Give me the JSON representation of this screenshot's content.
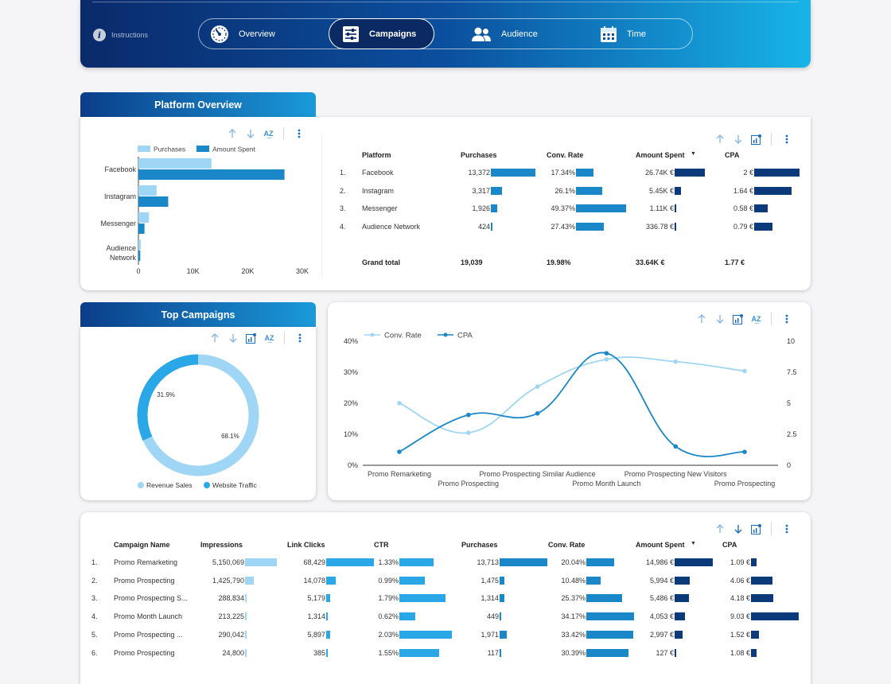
{
  "header": {
    "instructions_label": "Instructions",
    "nav": [
      {
        "label": "Overview",
        "icon": "gauge-icon",
        "active": false
      },
      {
        "label": "Campaigns",
        "icon": "sliders-icon",
        "active": true
      },
      {
        "label": "Audience",
        "icon": "users-icon",
        "active": false
      },
      {
        "label": "Time",
        "icon": "calendar-icon",
        "active": false
      }
    ]
  },
  "colors": {
    "light": "#9fd6f5",
    "mid": "#1a87c9",
    "dark": "#0b3a7a",
    "bright": "#2aa7e6"
  },
  "platform_overview": {
    "title": "Platform Overview",
    "chart": {
      "type": "bar",
      "orientation": "horizontal",
      "categories": [
        "Facebook",
        "Instagram",
        "Messenger",
        "Audience Network"
      ],
      "series": [
        {
          "name": "Purchases",
          "values": [
            13372,
            3317,
            1926,
            424
          ],
          "color": "#9fd6f5"
        },
        {
          "name": "Amount Spent",
          "values": [
            26740,
            5450,
            1110,
            336.78
          ],
          "color": "#1a87c9"
        }
      ],
      "xlim": [
        0,
        30000
      ],
      "xticks": [
        "0",
        "10K",
        "20K",
        "30K"
      ],
      "legend": "top"
    },
    "table": {
      "headers": [
        "Platform",
        "Purchases",
        "Conv. Rate",
        "Amount Spent",
        "CPA"
      ],
      "sort_indicator": "▼",
      "rows": [
        {
          "idx": "1.",
          "platform": "Facebook",
          "purchases": "13,372",
          "purchases_v": 13372,
          "conv": "17.34%",
          "conv_v": 17.34,
          "spent": "26.74K €",
          "spent_v": 26.74,
          "cpa": "2 €",
          "cpa_v": 2
        },
        {
          "idx": "2.",
          "platform": "Instagram",
          "purchases": "3,317",
          "purchases_v": 3317,
          "conv": "26.1%",
          "conv_v": 26.1,
          "spent": "5.45K €",
          "spent_v": 5.45,
          "cpa": "1.64 €",
          "cpa_v": 1.64
        },
        {
          "idx": "3.",
          "platform": "Messenger",
          "purchases": "1,926",
          "purchases_v": 1926,
          "conv": "49.37%",
          "conv_v": 49.37,
          "spent": "1.11K €",
          "spent_v": 1.11,
          "cpa": "0.58 €",
          "cpa_v": 0.58
        },
        {
          "idx": "4.",
          "platform": "Audience Network",
          "purchases": "424",
          "purchases_v": 424,
          "conv": "27.43%",
          "conv_v": 27.43,
          "spent": "336.78 €",
          "spent_v": 0.33678,
          "cpa": "0.79 €",
          "cpa_v": 0.79
        }
      ],
      "total": {
        "label": "Grand total",
        "purchases": "19,039",
        "conv": "19.98%",
        "spent": "33.64K €",
        "cpa": "1.77 €"
      }
    }
  },
  "top_campaigns": {
    "title": "Top Campaigns",
    "donut": {
      "type": "pie",
      "slices": [
        {
          "name": "Revenue Sales",
          "value": 68.1,
          "label": "68.1%",
          "color": "#9fd6f5"
        },
        {
          "name": "Website Traffic",
          "value": 31.9,
          "label": "31.9%",
          "color": "#2aa7e6"
        }
      ],
      "legend": "bottom"
    }
  },
  "chart_data": {
    "type": "line",
    "categories": [
      "Promo Remarketing",
      "Promo Prospecting",
      "Promo Prospecting Similar Audience",
      "Promo Month Launch",
      "Promo Prospecting New Visitors",
      "Promo Prospecting"
    ],
    "series": [
      {
        "name": "Conv. Rate",
        "axis": "left",
        "values": [
          20.04,
          10.48,
          25.37,
          34.17,
          33.42,
          30.39
        ],
        "color": "#9fd6f5"
      },
      {
        "name": "CPA",
        "axis": "right",
        "values": [
          1.09,
          4.06,
          4.18,
          9.03,
          1.52,
          1.08
        ],
        "color": "#1a87c9"
      }
    ],
    "y_left": {
      "range": [
        0,
        40
      ],
      "ticks": [
        "0%",
        "10%",
        "20%",
        "30%",
        "40%"
      ]
    },
    "y_right": {
      "range": [
        0,
        10
      ],
      "ticks": [
        "0",
        "2.5",
        "5",
        "7.5",
        "10"
      ]
    },
    "legend": "top-left",
    "grid": false
  },
  "campaign_table": {
    "headers": [
      "Campaign Name",
      "Impressions",
      "Link Clicks",
      "CTR",
      "Purchases",
      "Conv. Rate",
      "Amount Spent",
      "CPA"
    ],
    "sort_indicator": "▼",
    "rows": [
      {
        "idx": "1.",
        "name": "Promo Remarketing",
        "imp": "5,150,069",
        "imp_v": 5150069,
        "clicks": "68,429",
        "clicks_v": 68429,
        "ctr": "1.33%",
        "ctr_v": 1.33,
        "pur": "13,713",
        "pur_v": 13713,
        "conv": "20.04%",
        "conv_v": 20.04,
        "spent": "14,986 €",
        "spent_v": 14986,
        "cpa": "1.09 €",
        "cpa_v": 1.09
      },
      {
        "idx": "2.",
        "name": "Promo Prospecting",
        "imp": "1,425,790",
        "imp_v": 1425790,
        "clicks": "14,078",
        "clicks_v": 14078,
        "ctr": "0.99%",
        "ctr_v": 0.99,
        "pur": "1,475",
        "pur_v": 1475,
        "conv": "10.48%",
        "conv_v": 10.48,
        "spent": "5,994 €",
        "spent_v": 5994,
        "cpa": "4.06 €",
        "cpa_v": 4.06
      },
      {
        "idx": "3.",
        "name": "Promo Prospecting S...",
        "imp": "288,834",
        "imp_v": 288834,
        "clicks": "5,179",
        "clicks_v": 5179,
        "ctr": "1.79%",
        "ctr_v": 1.79,
        "pur": "1,314",
        "pur_v": 1314,
        "conv": "25.37%",
        "conv_v": 25.37,
        "spent": "5,486 €",
        "spent_v": 5486,
        "cpa": "4.18 €",
        "cpa_v": 4.18
      },
      {
        "idx": "4.",
        "name": "Promo Month Launch",
        "imp": "213,225",
        "imp_v": 213225,
        "clicks": "1,314",
        "clicks_v": 1314,
        "ctr": "0.62%",
        "ctr_v": 0.62,
        "pur": "449",
        "pur_v": 449,
        "conv": "34.17%",
        "conv_v": 34.17,
        "spent": "4,053 €",
        "spent_v": 4053,
        "cpa": "9.03 €",
        "cpa_v": 9.03
      },
      {
        "idx": "5.",
        "name": "Promo Prospecting ...",
        "imp": "290,042",
        "imp_v": 290042,
        "clicks": "5,897",
        "clicks_v": 5897,
        "ctr": "2.03%",
        "ctr_v": 2.03,
        "pur": "1,971",
        "pur_v": 1971,
        "conv": "33.42%",
        "conv_v": 33.42,
        "spent": "2,997 €",
        "spent_v": 2997,
        "cpa": "1.52 €",
        "cpa_v": 1.52
      },
      {
        "idx": "6.",
        "name": "Promo Prospecting",
        "imp": "24,800",
        "imp_v": 24800,
        "clicks": "385",
        "clicks_v": 385,
        "ctr": "1.55%",
        "ctr_v": 1.55,
        "pur": "117",
        "pur_v": 117,
        "conv": "30.39%",
        "conv_v": 30.39,
        "spent": "127 €",
        "spent_v": 127,
        "cpa": "1.08 €",
        "cpa_v": 1.08
      }
    ]
  }
}
